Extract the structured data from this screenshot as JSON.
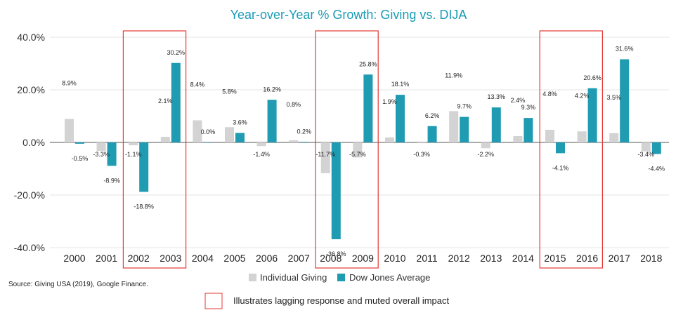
{
  "chart_data": {
    "type": "bar",
    "title": "Year-over-Year % Growth: Giving vs. DIJA",
    "categories": [
      "2000",
      "2001",
      "2002",
      "2003",
      "2004",
      "2005",
      "2006",
      "2007",
      "2008",
      "2009",
      "2010",
      "2011",
      "2012",
      "2013",
      "2014",
      "2015",
      "2016",
      "2017",
      "2018"
    ],
    "series": [
      {
        "name": "Individual Giving",
        "color": "#d3d3d3",
        "values": [
          8.9,
          -3.3,
          -1.1,
          2.1,
          8.4,
          5.8,
          -1.4,
          0.8,
          -11.7,
          -5.7,
          1.9,
          -0.3,
          11.9,
          -2.2,
          2.4,
          4.8,
          4.2,
          3.5,
          -3.4
        ],
        "labels": [
          "8.9%",
          "-3.3%",
          "-1.1%",
          "2.1%",
          "8.4%",
          "5.8%",
          "-1.4%",
          "0.8%",
          "-11.7%",
          "-5.7%",
          "1.9%",
          "-0.3%",
          "11.9%",
          "-2.2%",
          "2.4%",
          "4.8%",
          "4.2%",
          "3.5%",
          "-3.4%"
        ]
      },
      {
        "name": "Dow Jones Average",
        "color": "#1f9bb2",
        "values": [
          -0.5,
          -8.9,
          -18.8,
          30.2,
          0.0,
          3.6,
          16.2,
          0.2,
          -36.8,
          25.8,
          18.1,
          6.2,
          9.7,
          13.3,
          9.3,
          -4.1,
          20.6,
          31.6,
          -4.4
        ],
        "labels": [
          "-0.5%",
          "-8.9%",
          "-18.8%",
          "30.2%",
          "0.0%",
          "3.6%",
          "16.2%",
          "0.2%",
          "-36.8%",
          "25.8%",
          "18.1%",
          "6.2%",
          "9.7%",
          "13.3%",
          "9.3%",
          "-4.1%",
          "20.6%",
          "31.6%",
          "-4.4%"
        ]
      }
    ],
    "ylim": [
      -40,
      40
    ],
    "yticks": [
      40,
      20,
      0,
      -20,
      -40
    ],
    "ytick_labels": [
      "40.0%",
      "20.0%",
      "0.0%",
      "-20.0%",
      "-40.0%"
    ],
    "grid": true,
    "legend_position": "bottom",
    "highlight_groups": [
      [
        "2002",
        "2003"
      ],
      [
        "2008",
        "2009"
      ],
      [
        "2015",
        "2016"
      ]
    ],
    "highlight_color": "#e53935"
  },
  "source_text": "Source: Giving USA (2019), Google Finance.",
  "highlight_note": "Illustrates lagging response and muted overall impact"
}
